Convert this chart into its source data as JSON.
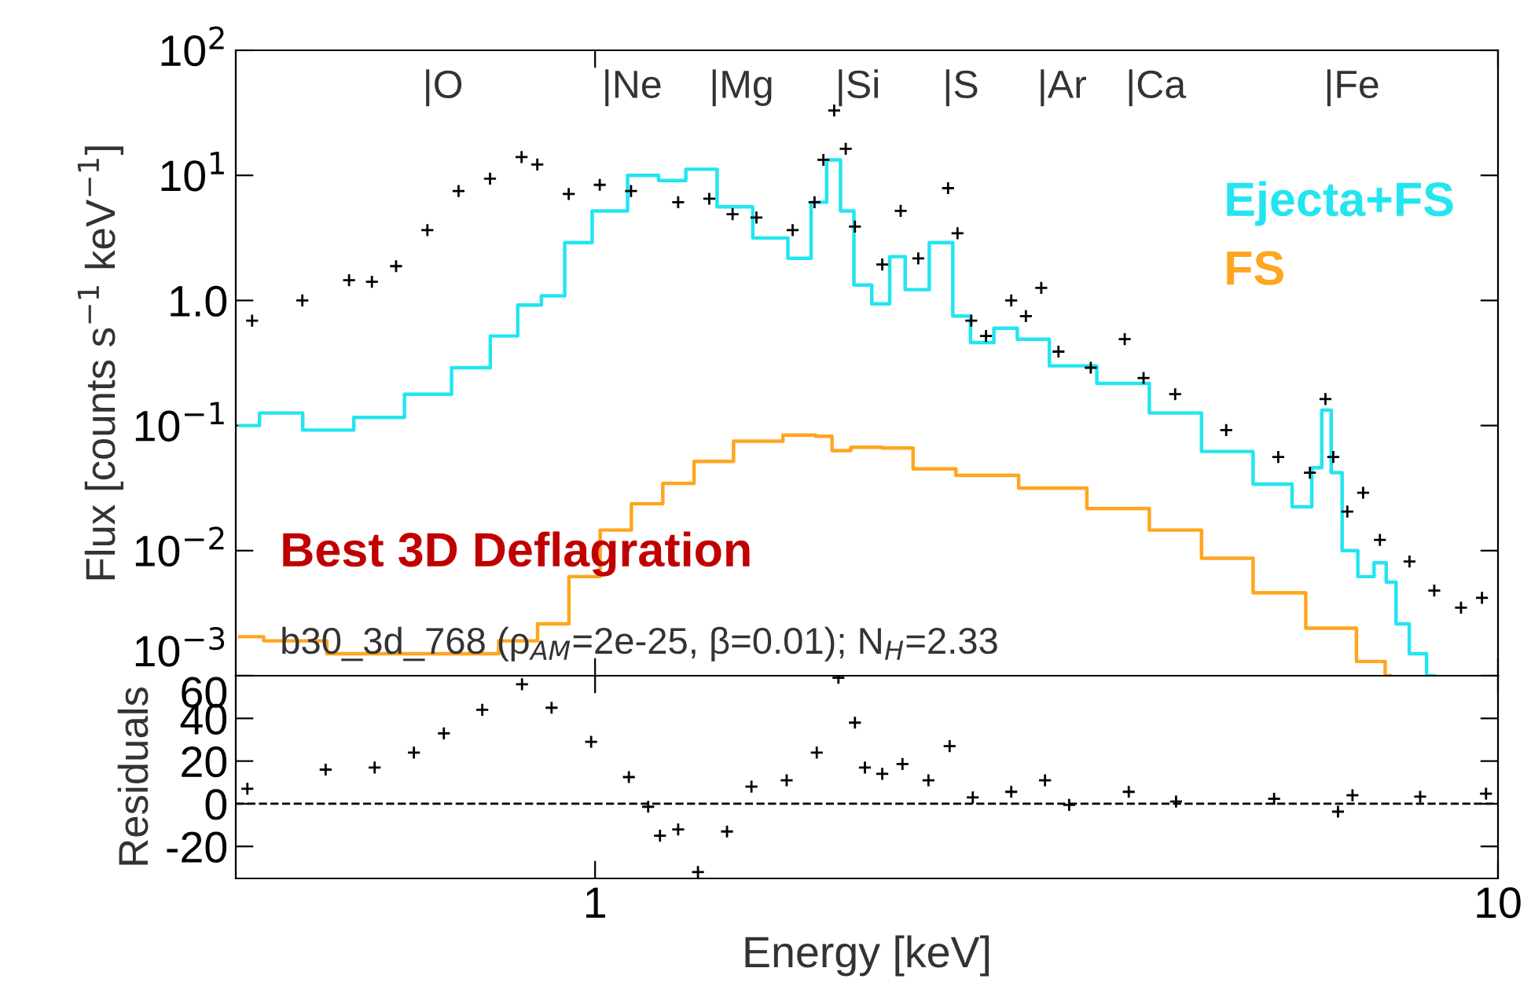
{
  "chart_data": [
    {
      "type": "line",
      "ylabel": "Flux [counts s$^{−1}$ keV$^{−1}$]",
      "log": "xy",
      "xlim": [
        0.4,
        10
      ],
      "xticks": [
        1,
        10
      ],
      "ylim": [
        0.001,
        100
      ],
      "yticks": [
        {
          "value": 0.001,
          "label": "10$^{−3}$"
        },
        {
          "value": 0.01,
          "label": "10$^{−2}$"
        },
        {
          "value": 0.1,
          "label": "10$^{−1}$"
        },
        {
          "value": 1,
          "label": "1.0"
        },
        {
          "value": 10,
          "label": "10$^{1}$"
        },
        {
          "value": 100,
          "label": "10$^{2}$"
        }
      ],
      "tick_labels": "y",
      "legend": "top right",
      "series": [
        {
          "type": "scatter",
          "marker": "cross",
          "color": "#000000",
          "x": [
            0.417,
            0.474,
            0.534,
            0.566,
            0.602,
            0.652,
            0.706,
            0.765,
            0.829,
            0.863,
            0.935,
            1.012,
            1.096,
            1.236,
            1.338,
            1.42,
            1.509,
            1.655,
            1.75,
            1.79,
            1.84,
            1.895,
            1.94,
            2.08,
            2.18,
            2.28,
            2.46,
            2.52,
            2.61,
            2.71,
            2.89,
            3.0,
            3.12,
            3.26,
            3.54,
            3.86,
            4.05,
            4.39,
            5.0,
            5.71,
            6.19,
            6.44,
            6.57,
            6.81,
            7.09,
            7.4,
            7.98,
            8.5,
            9.1,
            9.6
          ],
          "values": [
            0.69,
            1.0,
            1.45,
            1.41,
            1.88,
            3.65,
            7.5,
            9.4,
            14,
            12.2,
            7.1,
            8.4,
            7.5,
            6.1,
            6.5,
            4.9,
            4.6,
            3.65,
            6.1,
            13.3,
            33,
            16.3,
            3.9,
            1.94,
            5.2,
            2.17,
            7.9,
            3.45,
            0.69,
            0.52,
            1.0,
            0.75,
            1.26,
            0.39,
            0.29,
            0.49,
            0.24,
            0.178,
            0.092,
            0.056,
            0.042,
            0.163,
            0.056,
            0.0205,
            0.029,
            0.0122,
            0.0082,
            0.0048,
            0.0035,
            0.0042
          ]
        },
        {
          "type": "step",
          "name": "Ejecta+FS",
          "color": "#22e5f0",
          "x": [
            0.404,
            0.446,
            0.503,
            0.578,
            0.652,
            0.735,
            0.796,
            0.846,
            0.898,
            0.953,
            1.032,
            1.141,
            1.211,
            1.31,
            1.42,
            1.57,
            1.7,
            1.77,
            1.84,
            1.9,
            1.97,
            2.08,
            2.16,
            2.25,
            2.44,
            2.54,
            2.67,
            2.86,
            3.01,
            3.36,
            3.83,
            4.39,
            5.0,
            5.71,
            6.12,
            6.32,
            6.44,
            6.63,
            6.81,
            7.18,
            7.4,
            7.64,
            7.78,
            8.17,
            8.5
          ],
          "values": [
            0.1,
            0.126,
            0.092,
            0.116,
            0.178,
            0.29,
            0.52,
            0.92,
            1.09,
            2.9,
            5.2,
            10,
            9.1,
            11.2,
            5.6,
            3.16,
            2.17,
            6.1,
            13.3,
            5.2,
            1.33,
            0.94,
            2.24,
            1.22,
            2.9,
            0.75,
            0.46,
            0.6,
            0.49,
            0.3,
            0.217,
            0.126,
            0.062,
            0.034,
            0.0224,
            0.046,
            0.133,
            0.042,
            0.01,
            0.0062,
            0.008,
            0.0056,
            0.0026,
            0.0015,
            0.001
          ]
        },
        {
          "type": "step",
          "name": "FS",
          "color": "#ffa51f",
          "x": [
            0.404,
            0.455,
            0.554,
            0.735,
            0.829,
            0.898,
            0.973,
            1.053,
            1.141,
            1.236,
            1.338,
            1.509,
            1.72,
            1.79,
            1.87,
            1.97,
            2.19,
            2.31,
            2.71,
            3.18,
            3.83,
            4.39,
            5.0,
            5.71,
            6.54,
            7.4,
            7.6
          ],
          "values": [
            0.00205,
            0.0019,
            0.0015,
            0.0015,
            0.0019,
            0.0026,
            0.0062,
            0.0146,
            0.0237,
            0.0345,
            0.0516,
            0.075,
            0.084,
            0.082,
            0.063,
            0.067,
            0.066,
            0.045,
            0.04,
            0.0316,
            0.0217,
            0.0146,
            0.0087,
            0.0046,
            0.0024,
            0.0013,
            0.001
          ]
        }
      ],
      "annotations": [
        "|O",
        "|Ne",
        "|Mg",
        "|Si",
        "|S",
        "|Ar",
        "|Ca",
        "|Fe",
        "Best 3D Deflagration",
        "b30_3d_768 (ρ$_{AM}$=2e-25, β=0.01); N$_{H}$=2.33"
      ]
    },
    {
      "type": "scatter",
      "marker": "cross",
      "color": "#000000",
      "xlabel": "Energy [keV]",
      "ylabel": "Residuals",
      "log": "x",
      "xlim": [
        0.4,
        10
      ],
      "xticks": [
        1,
        10
      ],
      "ylim": [
        -35,
        60
      ],
      "yticks": [
        -20,
        0,
        20,
        40,
        60
      ],
      "x": [
        0.412,
        0.503,
        0.57,
        0.63,
        0.68,
        0.75,
        0.83,
        0.895,
        0.99,
        1.09,
        1.145,
        1.18,
        1.236,
        1.3,
        1.4,
        1.49,
        1.63,
        1.76,
        1.86,
        1.94,
        1.99,
        2.08,
        2.19,
        2.34,
        2.47,
        2.62,
        2.89,
        3.15,
        3.35,
        3.9,
        4.4,
        5.65,
        6.65,
        6.9,
        8.2,
        9.7
      ],
      "values": [
        7,
        16,
        17,
        24,
        33,
        44,
        56,
        45,
        29,
        12.5,
        -1.4,
        -15,
        -12,
        -32,
        -13,
        8,
        11,
        24,
        59,
        38,
        17,
        14,
        18.6,
        11,
        27,
        3,
        5.6,
        11,
        -0.5,
        5.6,
        1,
        2.3,
        -3.7,
        4,
        3.3,
        4.7
      ],
      "ref_lines": [
        {
          "axis": "y",
          "value": 0,
          "line_style": "dashed",
          "color": "#000000"
        }
      ]
    }
  ]
}
